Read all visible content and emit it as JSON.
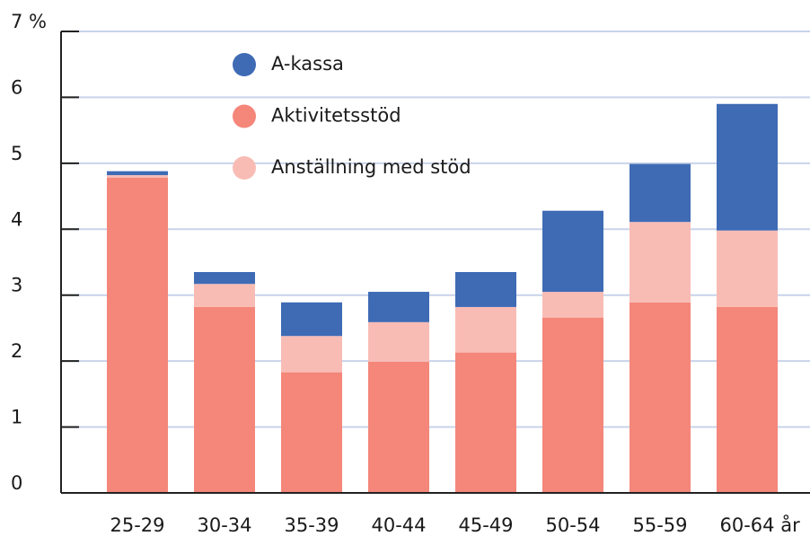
{
  "chart_data": {
    "type": "stacked_bar",
    "x_label": "år",
    "categories": [
      "25-29",
      "30-34",
      "35-39",
      "40-44",
      "45-49",
      "50-54",
      "55-59",
      "60-64"
    ],
    "series": [
      {
        "name": "A-kassa",
        "color": "#3f6bb5",
        "values": [
          0.06,
          0.18,
          0.51,
          0.46,
          0.53,
          1.23,
          0.88,
          1.92
        ]
      },
      {
        "name": "Aktivitetsstöd",
        "color": "#f4867a",
        "values": [
          4.78,
          2.82,
          1.83,
          1.99,
          2.13,
          2.66,
          2.89,
          2.82
        ]
      },
      {
        "name": "Anställning med stöd",
        "color": "#f8bcb5",
        "values": [
          0.04,
          0.35,
          0.55,
          0.6,
          0.69,
          0.39,
          1.22,
          1.16
        ]
      }
    ],
    "stack_order": [
      "Aktivitetsstöd",
      "Anställning med stöd",
      "A-kassa"
    ],
    "ylim": [
      0,
      7
    ],
    "yticks": [
      0,
      1,
      2,
      3,
      4,
      5,
      6,
      {
        "value": 7,
        "label": "7 %"
      }
    ],
    "grid": true
  }
}
